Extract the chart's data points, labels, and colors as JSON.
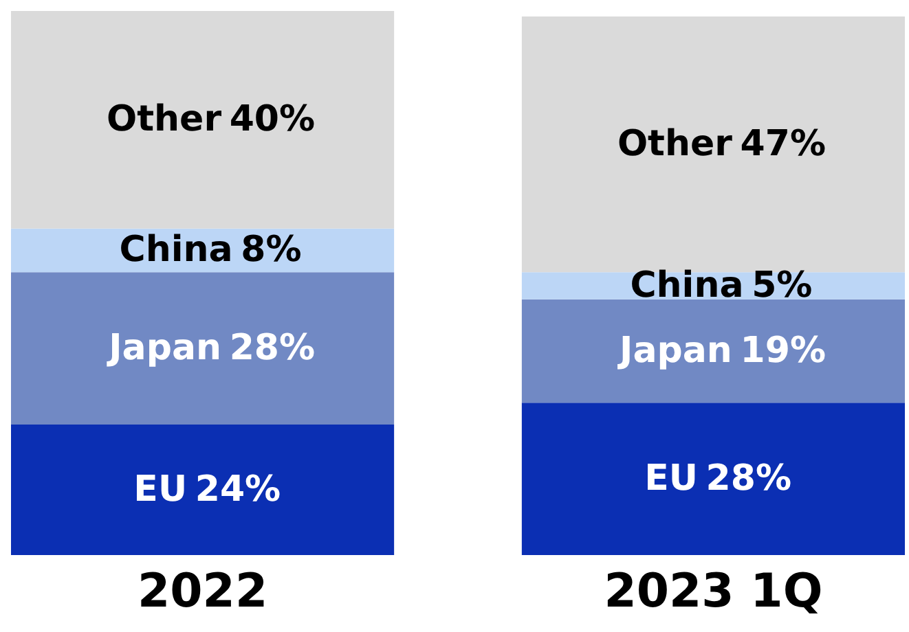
{
  "chart_data": {
    "type": "bar",
    "stacked": true,
    "categories": [
      "2022",
      "2023 1Q"
    ],
    "grid": false,
    "tick_labels": "x",
    "series": [
      {
        "name": "EU",
        "color": "#0b2fb3",
        "values": [
          24,
          28
        ],
        "value_labels": [
          "24%",
          "28%"
        ]
      },
      {
        "name": "Japan",
        "color": "#7189c4",
        "values": [
          28,
          19
        ],
        "value_labels": [
          "28%",
          "19%"
        ]
      },
      {
        "name": "China",
        "color": "#bcd6f6",
        "values": [
          8,
          5
        ],
        "value_labels": [
          "8%",
          "5%"
        ]
      },
      {
        "name": "Other",
        "color": "#dadada",
        "values": [
          40,
          47
        ],
        "value_labels": [
          "40%",
          "47%"
        ]
      }
    ]
  }
}
